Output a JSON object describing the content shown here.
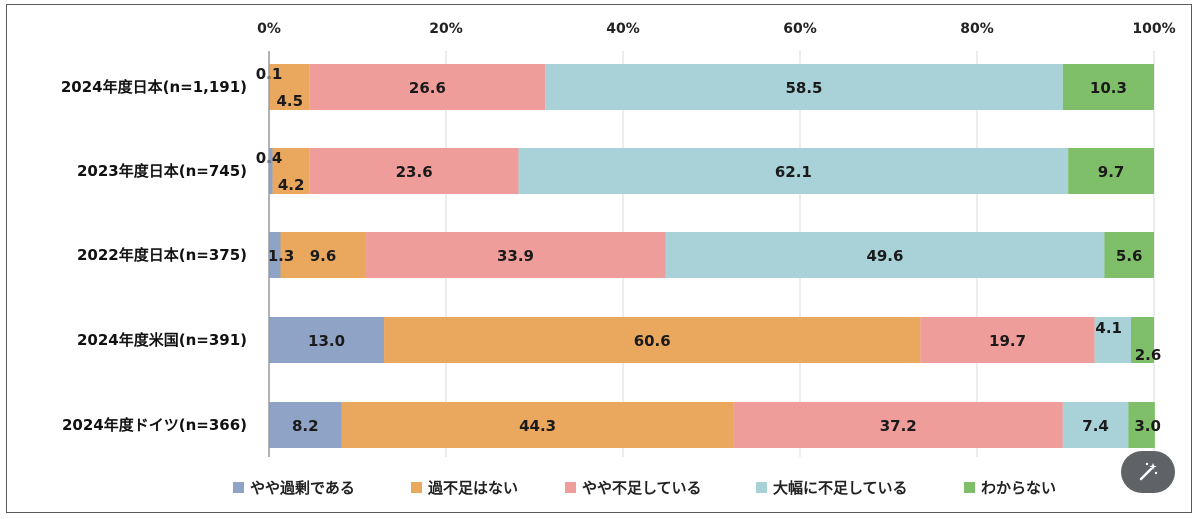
{
  "chart_data": {
    "type": "bar",
    "orientation": "horizontal",
    "stacked": true,
    "percent_axis": true,
    "categories": [
      "2024年度日本(n=1,191)",
      "2023年度日本(n=745)",
      "2022年度日本(n=375)",
      "2024年度米国(n=391)",
      "2024年度ドイツ(n=366)"
    ],
    "series": [
      {
        "name": "やや過剰である",
        "color": "#8ea3c6",
        "values": [
          0.1,
          0.4,
          1.3,
          13.0,
          8.2
        ],
        "labels": [
          "0.1",
          "0.4",
          "1.3",
          "13.0",
          "8.2"
        ]
      },
      {
        "name": "過不足はない",
        "color": "#e9a85e",
        "values": [
          4.5,
          4.2,
          9.6,
          60.6,
          44.3
        ],
        "labels": [
          "4.5",
          "4.2",
          "9.6",
          "60.6",
          "44.3"
        ]
      },
      {
        "name": "やや不足している",
        "color": "#ef9d9a",
        "values": [
          26.6,
          23.6,
          33.9,
          19.7,
          37.2
        ],
        "labels": [
          "26.6",
          "23.6",
          "33.9",
          "19.7",
          "37.2"
        ]
      },
      {
        "name": "大幅に不足している",
        "color": "#a8d2d8",
        "values": [
          58.5,
          62.1,
          49.6,
          4.1,
          7.4
        ],
        "labels": [
          "58.5",
          "62.1",
          "49.6",
          "4.1",
          "7.4"
        ]
      },
      {
        "name": "わからない",
        "color": "#7fbf6a",
        "values": [
          10.3,
          9.7,
          5.6,
          2.6,
          3.0
        ],
        "labels": [
          "10.3",
          "9.7",
          "5.6",
          "2.6",
          "3.0"
        ]
      }
    ],
    "xticks": [
      "0%",
      "20%",
      "40%",
      "60%",
      "80%",
      "100%"
    ],
    "xlim": [
      0,
      100
    ],
    "grid": true,
    "legend": "bottom"
  },
  "icons": {
    "magic_button": "magic-wand-icon"
  }
}
